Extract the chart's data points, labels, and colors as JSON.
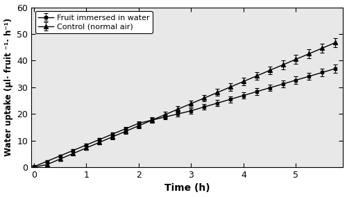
{
  "title": "",
  "xlabel": "Time (h)",
  "ylabel": "Water uptake (µl· fruit ⁻¹· h⁻¹)",
  "xlim": [
    -0.05,
    5.9
  ],
  "ylim": [
    0,
    60
  ],
  "xticks": [
    0,
    1,
    2,
    3,
    4,
    5
  ],
  "yticks": [
    0,
    10,
    20,
    30,
    40,
    50,
    60
  ],
  "background_color": "#ffffff",
  "plot_bg_color": "#e8e8e8",
  "line_color": "#000000",
  "legend_entries": [
    "Fruit immersed in water",
    "Control (normal air)"
  ],
  "immersion_start": 2.0,
  "immersion_end": 3.0,
  "control_slope_before": 8.32,
  "control_intercept_before": -1.1,
  "water_slope_before": 8.15,
  "water_intercept_before": 0.18,
  "water_slope_during": 4.69,
  "water_intercept_during": 0.64,
  "water_slope_after": 5.75,
  "water_intercept_after": -0.52,
  "dt": 0.25,
  "se_control_base": 1.8,
  "se_water_base": 1.5,
  "figsize": [
    5.0,
    2.84
  ],
  "dpi": 100
}
